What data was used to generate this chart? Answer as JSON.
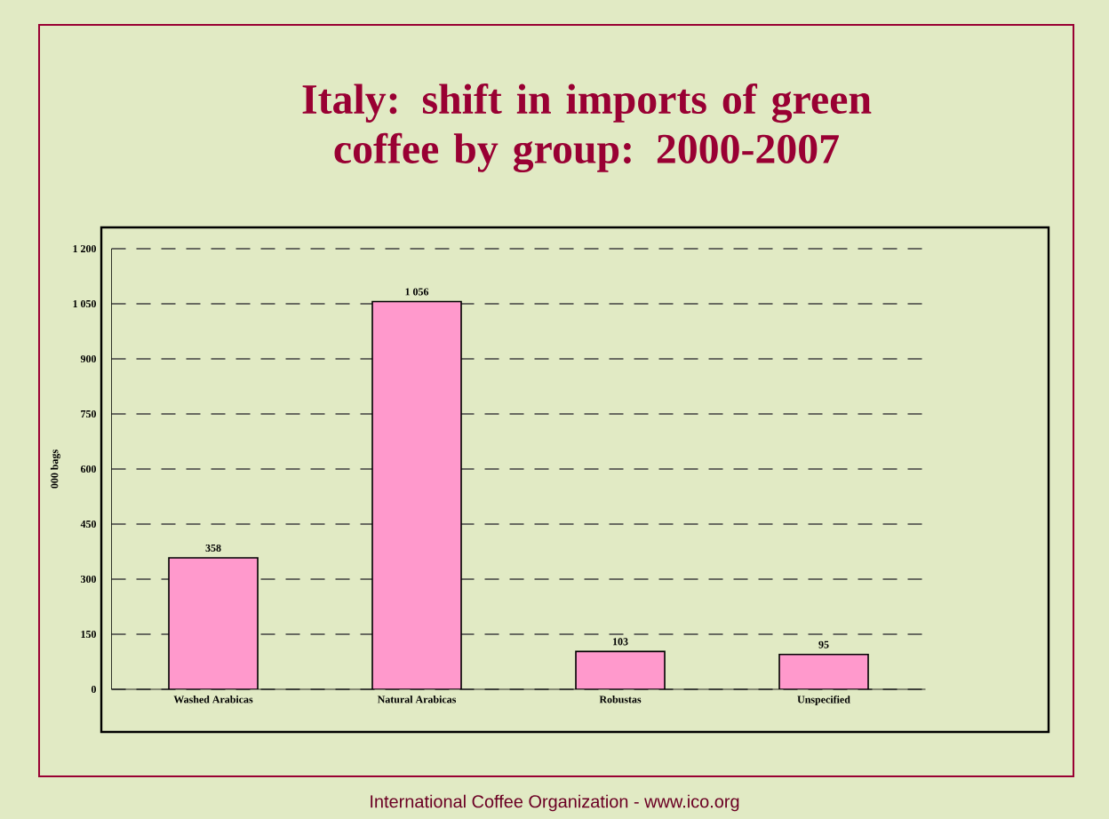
{
  "chart_data": {
    "type": "bar",
    "title": "Italy: shift in imports of green coffee by group: 2000-2007",
    "ylabel": "000 bags",
    "categories": [
      "Washed Arabicas",
      "Natural Arabicas",
      "Robustas",
      "Unspecified"
    ],
    "values": [
      358,
      1056,
      103,
      95
    ],
    "value_labels": [
      "358",
      "1 056",
      "103",
      "95"
    ],
    "color": "#ff99cc",
    "ylim": [
      0,
      1200
    ],
    "yticks": [
      0,
      150,
      300,
      450,
      600,
      750,
      900,
      {
        "value": 1050,
        "label": "1 050"
      },
      {
        "value": 1200,
        "label": "1 200"
      }
    ],
    "grid": "y",
    "annotations": [
      "International Coffee Organization  -  www.ico.org"
    ]
  }
}
